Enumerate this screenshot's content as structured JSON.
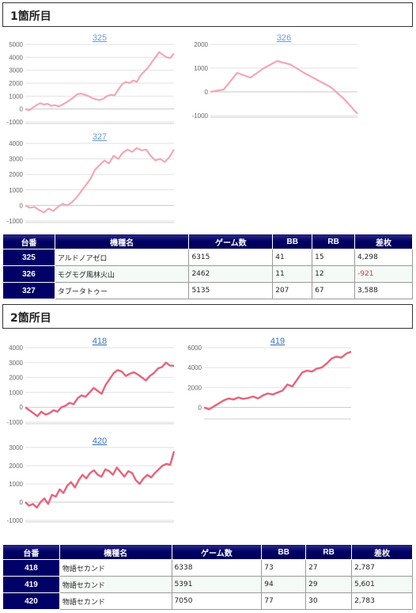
{
  "sections": [
    {
      "title": "1箇所目",
      "table": {
        "headers": [
          "台番",
          "機種名",
          "ゲーム数",
          "BB",
          "RB",
          "差枚"
        ],
        "rows": [
          {
            "num": "325",
            "machine": "アルドノアゼロ",
            "games": "6315",
            "bb": "41",
            "rb": "15",
            "diff": "4,298",
            "negative": false
          },
          {
            "num": "326",
            "machine": "モグモグ風林火山",
            "games": "2462",
            "bb": "11",
            "rb": "12",
            "diff": "-921",
            "negative": true
          },
          {
            "num": "327",
            "machine": "タブータトゥー",
            "games": "5135",
            "bb": "207",
            "rb": "67",
            "diff": "3,588",
            "negative": false
          }
        ]
      }
    },
    {
      "title": "2箇所目",
      "table": {
        "headers": [
          "台番",
          "機種名",
          "ゲーム数",
          "BB",
          "RB",
          "差枚"
        ],
        "rows": [
          {
            "num": "418",
            "machine": "物語セカンド",
            "games": "6338",
            "bb": "73",
            "rb": "27",
            "diff": "2,787",
            "negative": false
          },
          {
            "num": "419",
            "machine": "物語セカンド",
            "games": "5391",
            "bb": "94",
            "rb": "29",
            "diff": "5,601",
            "negative": false
          },
          {
            "num": "420",
            "machine": "物語セカンド",
            "games": "7050",
            "bb": "77",
            "rb": "30",
            "diff": "2,783",
            "negative": false
          }
        ]
      }
    }
  ],
  "colors": {
    "line_faded": "#f4a7b4",
    "line_strong": "#e8627a",
    "header_navy": "#000066"
  },
  "chart_data": [
    {
      "type": "line",
      "title": "325",
      "ylim": [
        -1000,
        5000
      ],
      "yticks": [
        -1000,
        0,
        1000,
        2000,
        3000,
        4000,
        5000
      ],
      "values": [
        0,
        -100,
        100,
        300,
        450,
        350,
        400,
        250,
        300,
        200,
        350,
        500,
        700,
        900,
        1150,
        1200,
        1100,
        1000,
        850,
        750,
        700,
        800,
        1000,
        1100,
        1050,
        1500,
        1900,
        2100,
        2000,
        2200,
        2100,
        2600,
        2900,
        3200,
        3600,
        4000,
        4400,
        4200,
        4000,
        3950,
        4300
      ]
    },
    {
      "type": "line",
      "title": "326",
      "ylim": [
        -1000,
        2000
      ],
      "yticks": [
        -1000,
        0,
        1000,
        2000
      ],
      "values": [
        0,
        100,
        800,
        600,
        1000,
        1300,
        1150,
        800,
        500,
        200,
        -300,
        -921
      ]
    },
    {
      "type": "line",
      "title": "327",
      "ylim": [
        -1000,
        4000
      ],
      "yticks": [
        -1000,
        0,
        1000,
        2000,
        3000,
        4000
      ],
      "values": [
        0,
        -150,
        -100,
        -300,
        -450,
        -200,
        -350,
        -100,
        100,
        0,
        200,
        500,
        900,
        1300,
        1700,
        2300,
        2600,
        2900,
        2700,
        3200,
        3000,
        3400,
        3600,
        3450,
        3700,
        3550,
        3600,
        3200,
        2900,
        3000,
        2800,
        3100,
        3600
      ]
    },
    {
      "type": "line",
      "title": "418",
      "ylim": [
        -1000,
        4000
      ],
      "yticks": [
        -1000,
        0,
        1000,
        2000,
        3000,
        4000
      ],
      "values": [
        0,
        -200,
        -400,
        -600,
        -300,
        -500,
        -400,
        -200,
        -300,
        0,
        100,
        300,
        200,
        600,
        800,
        700,
        1000,
        1300,
        1100,
        900,
        1500,
        1900,
        2300,
        2500,
        2400,
        2100,
        2250,
        2350,
        2200,
        2000,
        1800,
        2100,
        2300,
        2600,
        2700,
        3000,
        2800,
        2787
      ]
    },
    {
      "type": "line",
      "title": "419",
      "ylim": [
        -1000,
        6000
      ],
      "yticks": [
        0,
        2000,
        4000,
        6000
      ],
      "values": [
        0,
        -200,
        100,
        400,
        700,
        900,
        800,
        1000,
        850,
        950,
        1100,
        900,
        1200,
        1400,
        1300,
        1500,
        1700,
        2300,
        2100,
        2800,
        3500,
        3700,
        3600,
        3900,
        4000,
        4400,
        4900,
        5100,
        5000,
        5400,
        5601
      ]
    },
    {
      "type": "line",
      "title": "420",
      "ylim": [
        -1000,
        3000
      ],
      "yticks": [
        -1000,
        0,
        1000,
        2000,
        3000
      ],
      "values": [
        0,
        -200,
        -100,
        -300,
        0,
        200,
        -100,
        400,
        300,
        700,
        500,
        900,
        1100,
        800,
        1200,
        1500,
        1300,
        1600,
        1750,
        1500,
        1400,
        1800,
        1700,
        1500,
        1900,
        1650,
        1400,
        1700,
        1600,
        1200,
        1000,
        1300,
        1500,
        1350,
        1600,
        1800,
        2000,
        2100,
        2050,
        2783
      ]
    }
  ]
}
